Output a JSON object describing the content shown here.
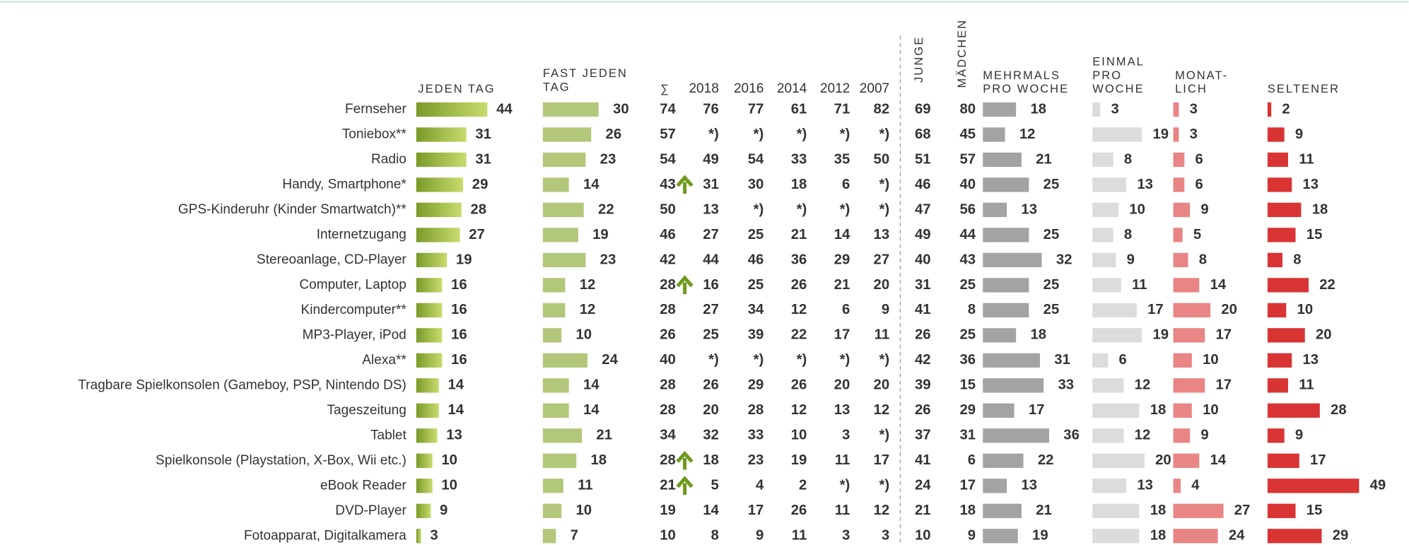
{
  "headers": {
    "daily": [
      "JEDEN TAG"
    ],
    "almost_daily": [
      "FAST JEDEN",
      "TAG"
    ],
    "sum": "∑",
    "years": [
      "2018",
      "2016",
      "2014",
      "2012",
      "2007"
    ],
    "boys": "JUNGE",
    "girls": "MÄDCHEN",
    "several_weekly": [
      "MEHRMALS",
      "PRO WOCHE"
    ],
    "weekly": [
      "EINMAL",
      "PRO",
      "WOCHE"
    ],
    "monthly": [
      "MONAT-",
      "LICH"
    ],
    "rarely": [
      "SELTENER"
    ]
  },
  "rows": [
    {
      "label": "Fernseher",
      "daily": 44,
      "almost_daily": 30,
      "sum": 74,
      "years": [
        76,
        77,
        61,
        71,
        82
      ],
      "boys": 69,
      "girls": 80,
      "several_weekly": 18,
      "weekly": 3,
      "monthly": 3,
      "rarely": 2
    },
    {
      "label": "Toniebox**",
      "daily": 31,
      "almost_daily": 26,
      "sum": 57,
      "years": [
        "*)",
        "*)",
        "*)",
        "*)",
        "*)"
      ],
      "boys": 68,
      "girls": 45,
      "several_weekly": 12,
      "weekly": 19,
      "monthly": 3,
      "rarely": 9
    },
    {
      "label": "Radio",
      "daily": 31,
      "almost_daily": 23,
      "sum": 54,
      "years": [
        49,
        54,
        33,
        35,
        50
      ],
      "boys": 51,
      "girls": 57,
      "several_weekly": 21,
      "weekly": 8,
      "monthly": 6,
      "rarely": 11
    },
    {
      "label": "Handy, Smartphone*",
      "daily": 29,
      "almost_daily": 14,
      "sum": 43,
      "arrow": true,
      "years": [
        31,
        30,
        18,
        6,
        "*)"
      ],
      "boys": 46,
      "girls": 40,
      "several_weekly": 25,
      "weekly": 13,
      "monthly": 6,
      "rarely": 13
    },
    {
      "label": "GPS-Kinderuhr (Kinder Smartwatch)**",
      "daily": 28,
      "almost_daily": 22,
      "sum": 50,
      "years": [
        13,
        "*)",
        "*)",
        "*)",
        "*)"
      ],
      "boys": 47,
      "girls": 56,
      "several_weekly": 13,
      "weekly": 10,
      "monthly": 9,
      "rarely": 18
    },
    {
      "label": "Internetzugang",
      "daily": 27,
      "almost_daily": 19,
      "sum": 46,
      "years": [
        27,
        25,
        21,
        14,
        13
      ],
      "boys": 49,
      "girls": 44,
      "several_weekly": 25,
      "weekly": 8,
      "monthly": 5,
      "rarely": 15
    },
    {
      "label": "Stereoanlage, CD-Player",
      "daily": 19,
      "almost_daily": 23,
      "sum": 42,
      "years": [
        44,
        46,
        36,
        29,
        27
      ],
      "boys": 40,
      "girls": 43,
      "several_weekly": 32,
      "weekly": 9,
      "monthly": 8,
      "rarely": 8
    },
    {
      "label": "Computer, Laptop",
      "daily": 16,
      "almost_daily": 12,
      "sum": 28,
      "arrow": true,
      "years": [
        16,
        25,
        26,
        21,
        20
      ],
      "boys": 31,
      "girls": 25,
      "several_weekly": 25,
      "weekly": 11,
      "monthly": 14,
      "rarely": 22
    },
    {
      "label": "Kindercomputer**",
      "daily": 16,
      "almost_daily": 12,
      "sum": 28,
      "years": [
        27,
        34,
        12,
        6,
        9
      ],
      "boys": 41,
      "girls": 8,
      "several_weekly": 25,
      "weekly": 17,
      "monthly": 20,
      "rarely": 10
    },
    {
      "label": "MP3-Player, iPod",
      "daily": 16,
      "almost_daily": 10,
      "sum": 26,
      "years": [
        25,
        39,
        22,
        17,
        11
      ],
      "boys": 26,
      "girls": 25,
      "several_weekly": 18,
      "weekly": 19,
      "monthly": 17,
      "rarely": 20
    },
    {
      "label": "Alexa**",
      "daily": 16,
      "almost_daily": 24,
      "sum": 40,
      "years": [
        "*)",
        "*)",
        "*)",
        "*)",
        "*)"
      ],
      "boys": 42,
      "girls": 36,
      "several_weekly": 31,
      "weekly": 6,
      "monthly": 10,
      "rarely": 13
    },
    {
      "label": "Tragbare Spielkonsolen (Gameboy, PSP, Nintendo DS)",
      "daily": 14,
      "almost_daily": 14,
      "sum": 28,
      "years": [
        26,
        29,
        26,
        20,
        20
      ],
      "boys": 39,
      "girls": 15,
      "several_weekly": 33,
      "weekly": 12,
      "monthly": 17,
      "rarely": 11
    },
    {
      "label": "Tageszeitung",
      "daily": 14,
      "almost_daily": 14,
      "sum": 28,
      "years": [
        20,
        28,
        12,
        13,
        12
      ],
      "boys": 26,
      "girls": 29,
      "several_weekly": 17,
      "weekly": 18,
      "monthly": 10,
      "rarely": 28
    },
    {
      "label": "Tablet",
      "daily": 13,
      "almost_daily": 21,
      "sum": 34,
      "years": [
        32,
        33,
        10,
        3,
        "*)"
      ],
      "boys": 37,
      "girls": 31,
      "several_weekly": 36,
      "weekly": 12,
      "monthly": 9,
      "rarely": 9
    },
    {
      "label": "Spielkonsole (Playstation, X-Box, Wii etc.)",
      "daily": 10,
      "almost_daily": 18,
      "sum": 28,
      "arrow": true,
      "years": [
        18,
        23,
        19,
        11,
        17
      ],
      "boys": 41,
      "girls": 6,
      "several_weekly": 22,
      "weekly": 20,
      "monthly": 14,
      "rarely": 17
    },
    {
      "label": "eBook Reader",
      "daily": 10,
      "almost_daily": 11,
      "sum": 21,
      "arrow": true,
      "years": [
        5,
        4,
        2,
        "*)",
        "*)"
      ],
      "boys": 24,
      "girls": 17,
      "several_weekly": 13,
      "weekly": 13,
      "monthly": 4,
      "rarely": 49
    },
    {
      "label": "DVD-Player",
      "daily": 9,
      "almost_daily": 10,
      "sum": 19,
      "years": [
        14,
        17,
        26,
        11,
        12
      ],
      "boys": 21,
      "girls": 18,
      "several_weekly": 21,
      "weekly": 18,
      "monthly": 27,
      "rarely": 15
    },
    {
      "label": "Fotoapparat, Digitalkamera",
      "daily": 3,
      "almost_daily": 7,
      "sum": 10,
      "years": [
        8,
        9,
        11,
        3,
        3
      ],
      "boys": 10,
      "girls": 9,
      "several_weekly": 19,
      "weekly": 18,
      "monthly": 24,
      "rarely": 29
    }
  ]
}
